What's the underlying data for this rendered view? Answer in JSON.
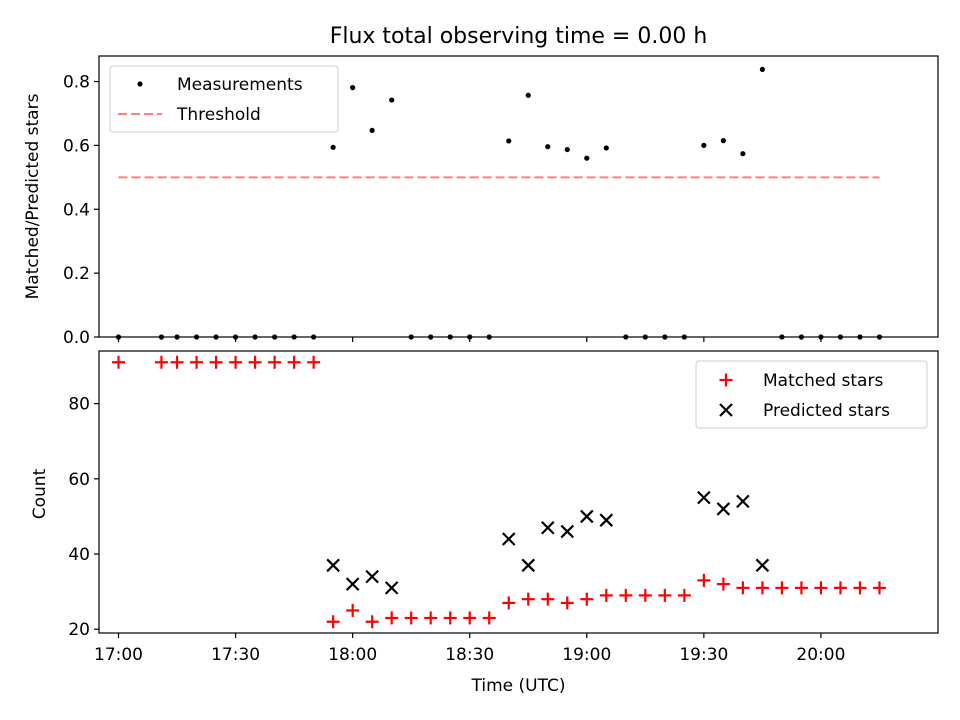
{
  "chart_data": [
    {
      "type": "scatter",
      "title": "Flux total observing time = 0.00 h",
      "xlabel": "",
      "ylabel": "Matched/Predicted stars",
      "xlim": [
        "16:55",
        "20:30"
      ],
      "ylim": [
        0,
        0.88
      ],
      "yticks": [
        0.0,
        0.2,
        0.4,
        0.6,
        0.8
      ],
      "ytick_labels": [
        "0.0",
        "0.2",
        "0.4",
        "0.6",
        "0.8"
      ],
      "legend": {
        "placement": "top-left"
      },
      "series": [
        {
          "name": "Measurements",
          "marker": "dot",
          "color": "#000000",
          "x": [
            "17:00",
            "17:11",
            "17:15",
            "17:20",
            "17:25",
            "17:30",
            "17:35",
            "17:40",
            "17:45",
            "17:50",
            "17:55",
            "18:00",
            "18:05",
            "18:10",
            "18:15",
            "18:20",
            "18:25",
            "18:30",
            "18:35",
            "18:40",
            "18:45",
            "18:50",
            "18:55",
            "19:00",
            "19:05",
            "19:10",
            "19:15",
            "19:20",
            "19:25",
            "19:30",
            "19:35",
            "19:40",
            "19:45",
            "19:50",
            "19:55",
            "20:00",
            "20:05",
            "20:10",
            "20:15"
          ],
          "y": [
            0,
            0,
            0,
            0,
            0,
            0,
            0,
            0,
            0,
            0,
            0.594,
            0.781,
            0.647,
            0.742,
            0,
            0,
            0,
            0,
            0,
            0.614,
            0.757,
            0.596,
            0.587,
            0.56,
            0.592,
            0,
            0,
            0,
            0,
            0.6,
            0.615,
            0.574,
            0.838,
            0,
            0,
            0,
            0,
            0,
            0
          ]
        },
        {
          "name": "Threshold",
          "marker": "dashed-line",
          "color": "#ff7f7f",
          "x": [
            "17:00",
            "20:15"
          ],
          "y": [
            0.5,
            0.5
          ]
        }
      ]
    },
    {
      "type": "scatter",
      "title": "",
      "xlabel": "Time (UTC)",
      "ylabel": "Count",
      "xlim": [
        "16:55",
        "20:30"
      ],
      "ylim": [
        19,
        94
      ],
      "yticks": [
        20,
        40,
        60,
        80
      ],
      "ytick_labels": [
        "20",
        "40",
        "60",
        "80"
      ],
      "xticks": [
        "17:00",
        "17:30",
        "18:00",
        "18:30",
        "19:00",
        "19:30",
        "20:00"
      ],
      "legend": {
        "placement": "top-right"
      },
      "series": [
        {
          "name": "Matched stars",
          "marker": "plus",
          "color": "#ff0000",
          "x": [
            "17:00",
            "17:11",
            "17:15",
            "17:20",
            "17:25",
            "17:30",
            "17:35",
            "17:40",
            "17:45",
            "17:50",
            "17:55",
            "18:00",
            "18:05",
            "18:10",
            "18:15",
            "18:20",
            "18:25",
            "18:30",
            "18:35",
            "18:40",
            "18:45",
            "18:50",
            "18:55",
            "19:00",
            "19:05",
            "19:10",
            "19:15",
            "19:20",
            "19:25",
            "19:30",
            "19:35",
            "19:40",
            "19:45",
            "19:50",
            "19:55",
            "20:00",
            "20:05",
            "20:10",
            "20:15"
          ],
          "y": [
            91,
            91,
            91,
            91,
            91,
            91,
            91,
            91,
            91,
            91,
            22,
            25,
            22,
            23,
            23,
            23,
            23,
            23,
            23,
            27,
            28,
            28,
            27,
            28,
            29,
            29,
            29,
            29,
            29,
            33,
            32,
            31,
            31,
            31,
            31,
            31,
            31,
            31,
            31
          ]
        },
        {
          "name": "Predicted stars",
          "marker": "x",
          "color": "#000000",
          "x": [
            "17:55",
            "18:00",
            "18:05",
            "18:10",
            "18:40",
            "18:45",
            "18:50",
            "18:55",
            "19:00",
            "19:05",
            "19:30",
            "19:35",
            "19:40",
            "19:45"
          ],
          "y": [
            37,
            32,
            34,
            31,
            44,
            37,
            47,
            46,
            50,
            49,
            55,
            52,
            54,
            37
          ]
        }
      ]
    }
  ]
}
